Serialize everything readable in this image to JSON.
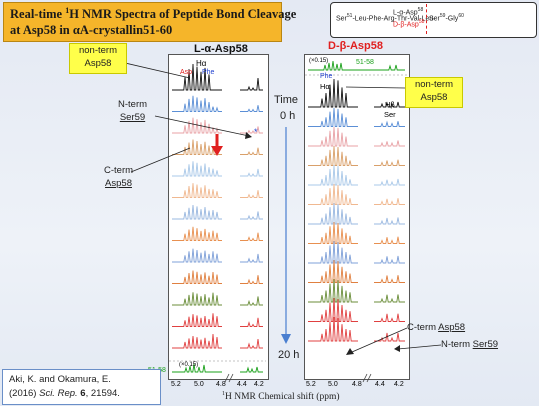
{
  "title": {
    "line1_pre": "Real-time ",
    "line1_sup": "1",
    "line1_post": "H NMR Spectra of Peptide Bond Cleavage",
    "line2": "at Asp58 in αA-crystallin51-60"
  },
  "sequence": {
    "prefix_sup": "51",
    "prefix": "Ser",
    "main": "-Leu-Phe-Arg-Thr-Val-Leu-",
    "l_asp": "L-α-Asp",
    "l_asp_sup": "58",
    "d_asp": "D-β-Asp",
    "d_asp_sup": "58",
    "ser": "Ser",
    "ser_sup": "59",
    "gly": "-Gly",
    "gly_sup": "60"
  },
  "left_panel": {
    "title": "L-α-Asp58",
    "h_alpha": "Hα",
    "asp": "Asp",
    "phe": "Phe",
    "star": "*",
    "scale_note": "(×0.15)",
    "ref_label": "51-58",
    "x_ticks": [
      "5.2",
      "5.0",
      "4.8",
      "4.4",
      "4.2"
    ]
  },
  "right_panel": {
    "title": "D-β-Asp58",
    "scale_note": "(×0.15)",
    "ref_label": "51-58",
    "phe": "Phe",
    "h_alpha": "Hα",
    "h_beta": "Hβ",
    "ser": "Ser",
    "x_ticks": [
      "5.2",
      "5.0",
      "4.8",
      "4.4",
      "4.2"
    ]
  },
  "callouts": {
    "nonterm_left_l1": "non-term",
    "nonterm_left_l2": "Asp58",
    "nonterm_right_l1": "non-term",
    "nonterm_right_l2": "Asp58",
    "nterm_ser_l1": "N-term",
    "nterm_ser_l2": "Ser59",
    "cterm_asp_l1": "C-term",
    "cterm_asp_l2": "Asp58",
    "cterm_right_a": "C-term ",
    "cterm_right_b": "Asp58",
    "nterm_right_a": "N-term ",
    "nterm_right_b": "Ser59"
  },
  "time": {
    "label": "Time",
    "start": "0 h",
    "end": "20 h"
  },
  "x_axis_label_sup": "1",
  "x_axis_label": "H NMR Chemical shift (ppm)",
  "reference": {
    "line1": "Aki, K. and Okamura, E.",
    "line2_pre": "(2016) ",
    "line2_journal": "Sci. Rep.",
    "line2_vol": " 6",
    "line2_post": ", 21594."
  },
  "colors": {
    "title_bg": "#f5b52a",
    "callout_bg": "#ffff4a",
    "red_title": "#e02020",
    "asp_red": "#e02020",
    "phe_blue": "#2040d0",
    "green_ref": "#1aa01a",
    "time_arrow": "#4a7fd0",
    "trace_colors": [
      "#111111",
      "#5b8fd6",
      "#e8a2a6",
      "#d9a06a",
      "#a9c8e8",
      "#f0b890",
      "#9ab8e0",
      "#e89050",
      "#7fa0d8",
      "#e08040",
      "#6b8e3a",
      "#e04040"
    ]
  }
}
